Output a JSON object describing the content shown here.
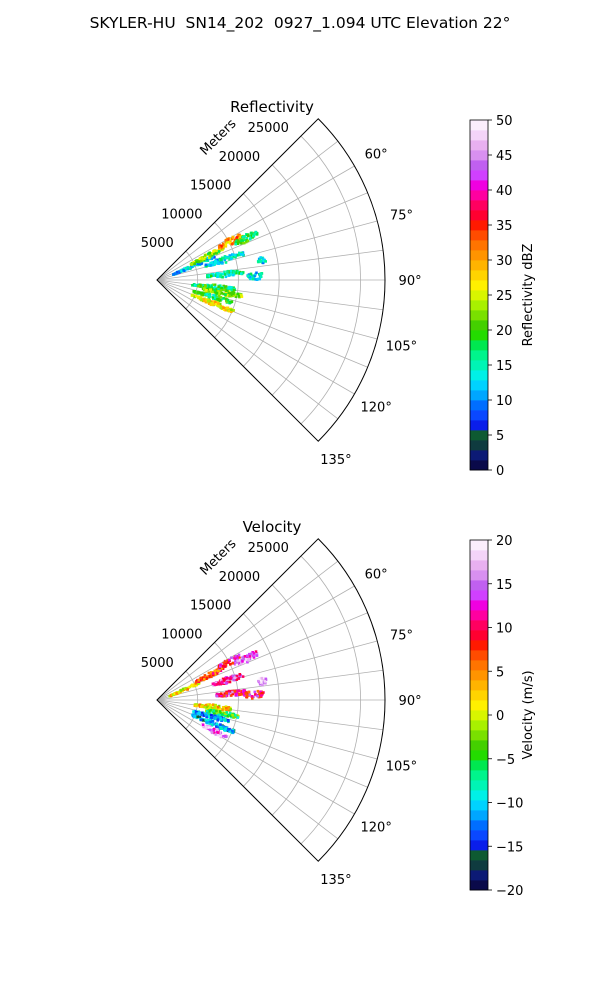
{
  "figure": {
    "suptitle": "SKYLER-HU  SN14_202  0927_1.094 UTC Elevation 22°"
  },
  "chart_data": [
    {
      "type": "polar-sector",
      "title": "Reflectivity",
      "radial_label": "Meters",
      "radial_ticks": [
        5000,
        10000,
        15000,
        20000,
        25000
      ],
      "radial_tick_labels": [
        "5000",
        "10000",
        "15000",
        "20000",
        "25000"
      ],
      "r_max": 28000,
      "theta_range_deg": [
        45,
        135
      ],
      "theta_ticks": [
        60,
        75,
        90,
        105,
        120,
        135
      ],
      "theta_tick_labels": [
        "60°",
        "75°",
        "90°",
        "105°",
        "120°",
        "135°"
      ],
      "grid": true,
      "colorbar": {
        "label": "Reflectivity dBZ",
        "range": [
          0,
          50
        ],
        "ticks": [
          0,
          5,
          10,
          15,
          20,
          25,
          30,
          35,
          40,
          45,
          50
        ],
        "tick_labels": [
          "0",
          "5",
          "10",
          "15",
          "20",
          "25",
          "30",
          "35",
          "40",
          "45",
          "50"
        ]
      },
      "echo_regions": [
        {
          "az_deg": 66,
          "r_m": [
            2000,
            7500
          ],
          "value": 12
        },
        {
          "az_deg": 63,
          "r_m": [
            4500,
            9000
          ],
          "value": 22
        },
        {
          "az_deg": 61,
          "r_m": [
            8500,
            11500
          ],
          "value": 30
        },
        {
          "az_deg": 64,
          "r_m": [
            10500,
            13500
          ],
          "value": 18
        },
        {
          "az_deg": 72,
          "r_m": [
            6000,
            11000
          ],
          "value": 14
        },
        {
          "az_deg": 79,
          "r_m": [
            12500,
            13500
          ],
          "value": 14
        },
        {
          "az_deg": 84,
          "r_m": [
            6000,
            10500
          ],
          "value": 16
        },
        {
          "az_deg": 87,
          "r_m": [
            11000,
            13000
          ],
          "value": 13
        },
        {
          "az_deg": 96,
          "r_m": [
            4000,
            9500
          ],
          "value": 18
        },
        {
          "az_deg": 100,
          "r_m": [
            5500,
            10500
          ],
          "value": 22
        },
        {
          "az_deg": 106,
          "r_m": [
            4500,
            9500
          ],
          "value": 18
        },
        {
          "az_deg": 112,
          "r_m": [
            4500,
            10000
          ],
          "value": 26
        }
      ]
    },
    {
      "type": "polar-sector",
      "title": "Velocity",
      "radial_label": "Meters",
      "radial_ticks": [
        5000,
        10000,
        15000,
        20000,
        25000
      ],
      "radial_tick_labels": [
        "5000",
        "10000",
        "15000",
        "20000",
        "25000"
      ],
      "r_max": 28000,
      "theta_range_deg": [
        45,
        135
      ],
      "theta_ticks": [
        60,
        75,
        90,
        105,
        120,
        135
      ],
      "theta_tick_labels": [
        "60°",
        "75°",
        "90°",
        "105°",
        "120°",
        "135°"
      ],
      "grid": true,
      "colorbar": {
        "label": "Velocity (m/s)",
        "range": [
          -20,
          20
        ],
        "ticks": [
          -20,
          -15,
          -10,
          -5,
          0,
          5,
          10,
          15,
          20
        ],
        "tick_labels": [
          "−20",
          "−15",
          "−10",
          "−5",
          "0",
          "5",
          "10",
          "15",
          "20"
        ]
      },
      "echo_regions": [
        {
          "az_deg": 66,
          "r_m": [
            1500,
            5500
          ],
          "value": 2
        },
        {
          "az_deg": 63,
          "r_m": [
            5000,
            9000
          ],
          "value": 7
        },
        {
          "az_deg": 61,
          "r_m": [
            8500,
            11500
          ],
          "value": 11
        },
        {
          "az_deg": 64,
          "r_m": [
            10500,
            13500
          ],
          "value": 15
        },
        {
          "az_deg": 73,
          "r_m": [
            7000,
            11000
          ],
          "value": 13
        },
        {
          "az_deg": 79,
          "r_m": [
            12500,
            13500
          ],
          "value": 17
        },
        {
          "az_deg": 84,
          "r_m": [
            7000,
            11000
          ],
          "value": 11
        },
        {
          "az_deg": 86,
          "r_m": [
            10500,
            13000
          ],
          "value": 10
        },
        {
          "az_deg": 96,
          "r_m": [
            4500,
            9000
          ],
          "value": 2
        },
        {
          "az_deg": 101,
          "r_m": [
            6000,
            10000
          ],
          "value": -5
        },
        {
          "az_deg": 106,
          "r_m": [
            4500,
            9000
          ],
          "value": -11
        },
        {
          "az_deg": 112,
          "r_m": [
            4500,
            10000
          ],
          "value": -12
        },
        {
          "az_deg": 118,
          "r_m": [
            6000,
            9500
          ],
          "value": 16
        }
      ]
    }
  ]
}
